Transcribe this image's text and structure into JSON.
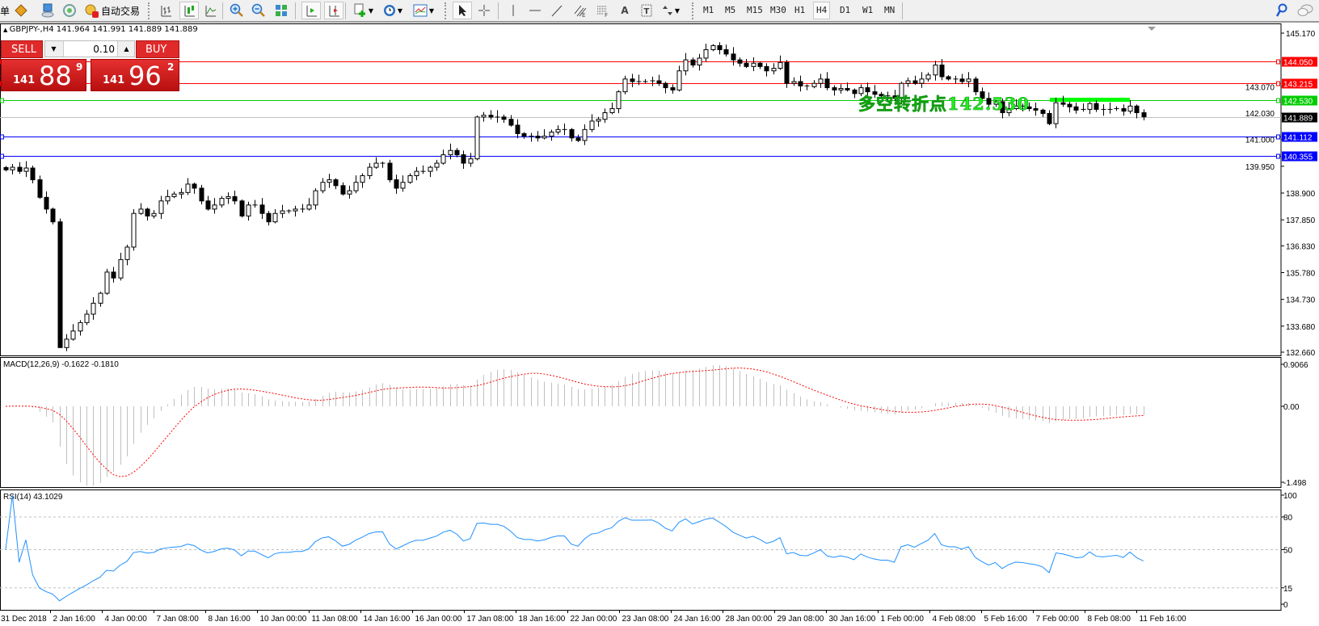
{
  "toolbar": {
    "new_order_label_partial": "单",
    "autotrade_label": "自动交易",
    "timeframes": [
      "M1",
      "M5",
      "M15",
      "M30",
      "H1",
      "H4",
      "D1",
      "W1",
      "MN"
    ],
    "active_timeframe": "H4",
    "active_chart_type": "candlesticks",
    "active_tool": "cursor"
  },
  "symbol_header": "GBPJPY-,H4  141.964 141.991 141.889 141.889",
  "trade_panel": {
    "sell_label": "SELL",
    "buy_label": "BUY",
    "lot": "0.10",
    "sell_price": {
      "big_figure": "141",
      "pips": "88",
      "fraction": "9"
    },
    "buy_price": {
      "big_figure": "141",
      "pips": "96",
      "fraction": "2"
    },
    "color": "#e02a2a"
  },
  "price_axis": {
    "range": [
      132.66,
      145.17
    ],
    "ticks": [
      "145.170",
      "143.070",
      "142.030",
      "141.000",
      "139.950",
      "138.900",
      "137.850",
      "136.830",
      "135.780",
      "134.730",
      "133.680",
      "132.660"
    ]
  },
  "levels": [
    {
      "price": "144.050",
      "color": "#ff0000"
    },
    {
      "price": "143.215",
      "color": "#ff0000"
    },
    {
      "price": "142.530",
      "color": "#00cc00"
    },
    {
      "price": "141.889",
      "color": "#000000",
      "line_color": "#c0c0c0"
    },
    {
      "price": "141.112",
      "color": "#0000ff"
    },
    {
      "price": "140.355",
      "color": "#0000ff"
    }
  ],
  "annotation": {
    "text": "多空转折点142.530",
    "color": "#00ff00"
  },
  "candles": {
    "first_open": 139.9,
    "closes": [
      139.81,
      139.91,
      139.75,
      139.88,
      139.42,
      138.73,
      138.27,
      137.77,
      132.84,
      133.17,
      133.49,
      133.82,
      134.15,
      134.58,
      134.97,
      135.8,
      135.57,
      136.29,
      136.78,
      138.1,
      138.27,
      138.0,
      138.1,
      138.59,
      138.76,
      138.86,
      138.92,
      139.25,
      139.09,
      138.59,
      138.27,
      138.43,
      138.69,
      138.76,
      138.59,
      138.0,
      138.43,
      138.43,
      138.1,
      137.77,
      138.1,
      138.2,
      138.2,
      138.27,
      138.27,
      138.43,
      138.99,
      139.32,
      139.42,
      139.19,
      138.86,
      138.99,
      139.32,
      139.58,
      139.91,
      140.07,
      140.07,
      139.42,
      139.09,
      139.32,
      139.58,
      139.75,
      139.75,
      139.91,
      140.07,
      140.4,
      140.57,
      140.4,
      140.07,
      140.24,
      141.88,
      141.95,
      141.88,
      141.88,
      141.79,
      141.56,
      141.23,
      141.13,
      141.13,
      141.06,
      141.13,
      141.29,
      141.39,
      141.39,
      141.06,
      140.96,
      141.39,
      141.72,
      141.79,
      142.05,
      142.21,
      142.87,
      143.37,
      143.27,
      143.27,
      143.27,
      143.3,
      143.2,
      143.03,
      142.94,
      143.69,
      144.12,
      143.92,
      144.19,
      144.52,
      144.68,
      144.52,
      144.35,
      144.12,
      143.99,
      143.86,
      143.99,
      143.86,
      143.69,
      143.79,
      144.02,
      143.2,
      143.27,
      143.1,
      143.07,
      143.2,
      143.37,
      143.03,
      142.94,
      143.0,
      142.94,
      142.8,
      143.03,
      142.87,
      142.77,
      142.71,
      142.71,
      142.61,
      143.2,
      143.3,
      143.2,
      143.37,
      143.53,
      143.92,
      143.46,
      143.37,
      143.37,
      143.27,
      143.37,
      142.87,
      142.61,
      142.38,
      142.48,
      142.05,
      142.21,
      142.31,
      142.28,
      142.21,
      142.15,
      142.02,
      141.62,
      142.44,
      142.38,
      142.28,
      142.15,
      142.18,
      142.41,
      142.18,
      142.15,
      142.18,
      142.21,
      142.11,
      142.31,
      142.05,
      141.889
    ],
    "bull_color": "#ffffff",
    "bear_color": "#000000"
  },
  "macd": {
    "label": "MACD(12,26,9) -0.1622 -0.1810",
    "range": [
      -1.498,
      0.9066
    ],
    "axis": [
      "0.9066",
      "0.00",
      "-1.498"
    ],
    "histogram_color": "#c0c0c0",
    "signal_color": "#ff0000"
  },
  "rsi": {
    "label": "RSI(14) 43.1029",
    "axis": [
      "100",
      "80",
      "50",
      "15",
      "0"
    ],
    "levels": [
      80,
      50,
      15
    ],
    "line_color": "#1e90ff"
  },
  "time_axis": {
    "labels": [
      "31 Dec 2018",
      "2 Jan 16:00",
      "4 Jan 00:00",
      "7 Jan 08:00",
      "8 Jan 16:00",
      "10 Jan 00:00",
      "11 Jan 08:00",
      "14 Jan 16:00",
      "16 Jan 00:00",
      "17 Jan 08:00",
      "18 Jan 16:00",
      "22 Jan 00:00",
      "23 Jan 08:00",
      "24 Jan 16:00",
      "28 Jan 00:00",
      "29 Jan 08:00",
      "30 Jan 16:00",
      "1 Feb 00:00",
      "4 Feb 08:00",
      "5 Feb 16:00",
      "7 Feb 00:00",
      "8 Feb 08:00",
      "11 Feb 16:00"
    ]
  }
}
